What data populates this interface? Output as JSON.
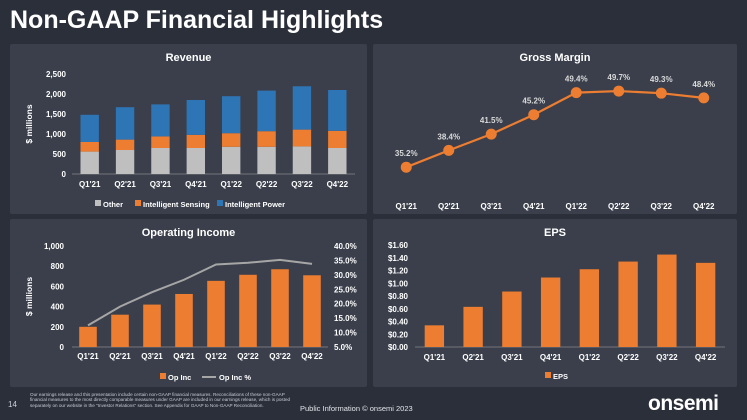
{
  "slide": {
    "title": "Non-GAAP Financial Highlights",
    "page_number": "14",
    "footnote": "Our earnings release and this presentation include certain non-GAAP financial measures. Reconciliations of these non-GAAP financial measures to the most directly comparable measures under GAAP are included in our earnings release, which is posted separately on our website in the \"Investor Relations\" section. See Appendix for GAAP to Non-GAAP Reconciliation.",
    "footer_center": "Public Information  © onsemi 2023",
    "logo": "onsemi"
  },
  "colors": {
    "other": "#bfbfbf",
    "sensing": "#ed7d31",
    "power": "#2e75b6",
    "orange": "#ed7d31",
    "line_gray": "#a6a6a6",
    "axis_text": "#ffffff",
    "gridline": "#555a66"
  },
  "chart_data": [
    {
      "type": "bar",
      "stacked": true,
      "title": "Revenue",
      "ylabel": "$ millions",
      "categories": [
        "Q1'21",
        "Q2'21",
        "Q3'21",
        "Q4'21",
        "Q1'22",
        "Q2'22",
        "Q3'22",
        "Q4'22"
      ],
      "ylim": [
        0,
        2500
      ],
      "yticks": [
        "0",
        "500",
        "1,000",
        "1,500",
        "2,000",
        "2,500"
      ],
      "series": [
        {
          "name": "Other",
          "values": [
            560,
            600,
            650,
            650,
            680,
            680,
            690,
            650
          ]
        },
        {
          "name": "Intelligent Sensing",
          "values": [
            240,
            260,
            290,
            330,
            340,
            390,
            420,
            430
          ]
        },
        {
          "name": "Intelligent Power",
          "values": [
            680,
            810,
            800,
            870,
            925,
            1015,
            1083,
            1020
          ]
        }
      ],
      "legend": [
        "Other",
        "Intelligent Sensing",
        "Intelligent Power"
      ]
    },
    {
      "type": "line",
      "title": "Gross Margin",
      "categories": [
        "Q1'21",
        "Q2'21",
        "Q3'21",
        "Q4'21",
        "Q1'22",
        "Q2'22",
        "Q3'22",
        "Q4'22"
      ],
      "values": [
        35.2,
        38.4,
        41.5,
        45.2,
        49.4,
        49.7,
        49.3,
        48.4
      ],
      "labels": [
        "35.2%",
        "38.4%",
        "41.5%",
        "45.2%",
        "49.4%",
        "49.7%",
        "49.3%",
        "48.4%"
      ],
      "ylim": [
        32,
        52
      ]
    },
    {
      "type": "bar",
      "title": "Operating Income",
      "ylabel": "$ millions",
      "categories": [
        "Q1'21",
        "Q2'21",
        "Q3'21",
        "Q4'21",
        "Q1'22",
        "Q2'22",
        "Q3'22",
        "Q4'22"
      ],
      "ylim": [
        0,
        1000
      ],
      "yticks": [
        "0",
        "200",
        "400",
        "600",
        "800",
        "1,000"
      ],
      "values": [
        200,
        320,
        420,
        525,
        655,
        715,
        770,
        710
      ],
      "secondary": {
        "name": "Op Inc %",
        "values": [
          12.5,
          19.0,
          24.0,
          28.3,
          33.6,
          34.2,
          35.2,
          33.8
        ],
        "ylim": [
          5,
          40
        ],
        "yticks": [
          "5.0%",
          "10.0%",
          "15.0%",
          "20.0%",
          "25.0%",
          "30.0%",
          "35.0%",
          "40.0%"
        ]
      },
      "legend": [
        "Op Inc",
        "Op Inc %"
      ]
    },
    {
      "type": "bar",
      "title": "EPS",
      "categories": [
        "Q1'21",
        "Q2'21",
        "Q3'21",
        "Q4'21",
        "Q1'22",
        "Q2'22",
        "Q3'22",
        "Q4'22"
      ],
      "ylim": [
        0,
        1.6
      ],
      "yticks": [
        "$0.00",
        "$0.20",
        "$0.40",
        "$0.60",
        "$0.80",
        "$1.00",
        "$1.20",
        "$1.40",
        "$1.60"
      ],
      "values": [
        0.34,
        0.63,
        0.87,
        1.09,
        1.22,
        1.34,
        1.45,
        1.32
      ],
      "legend": [
        "EPS"
      ]
    }
  ]
}
